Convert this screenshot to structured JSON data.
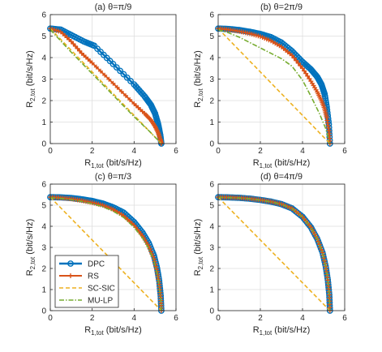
{
  "colors": {
    "DPC": "#0072BD",
    "RS": "#D95319",
    "SC-SIC": "#EDB120",
    "MU-LP": "#77AC30",
    "axis": "#262626",
    "grid": "#dedede"
  },
  "legend": {
    "entries": [
      "DPC",
      "RS",
      "SC-SIC",
      "MU-LP"
    ],
    "placement": "lower-left of panel (c)"
  },
  "chart_data": [
    {
      "type": "line",
      "title": "(a) θ=π/9",
      "xlabel": "R_1,tot (bit/s/Hz)",
      "ylabel": "R_2,tot (bit/s/Hz)",
      "xlim": [
        0,
        6
      ],
      "ylim": [
        0,
        6
      ],
      "xticks": [
        0,
        2,
        4,
        6
      ],
      "yticks": [
        0,
        1,
        2,
        3,
        4,
        5,
        6
      ],
      "grid": true,
      "series": [
        {
          "name": "DPC",
          "x": [
            0,
            0.5,
            1,
            1.6,
            2.1,
            3,
            4,
            4.5,
            4.8,
            5.0,
            5.15,
            5.25,
            5.3
          ],
          "y": [
            5.35,
            5.3,
            5.05,
            4.75,
            4.55,
            3.7,
            2.75,
            2.2,
            1.8,
            1.4,
            0.9,
            0.4,
            0
          ]
        },
        {
          "name": "RS",
          "x": [
            0,
            0.5,
            1,
            1.5,
            2,
            3,
            4,
            4.5,
            4.8,
            5.0,
            5.15,
            5.25,
            5.3
          ],
          "y": [
            5.35,
            5.2,
            4.75,
            4.2,
            3.75,
            2.8,
            1.85,
            1.4,
            1.1,
            0.8,
            0.5,
            0.2,
            0
          ]
        },
        {
          "name": "SC-SIC",
          "x": [
            0,
            5.3
          ],
          "y": [
            5.35,
            0
          ]
        },
        {
          "name": "MU-LP",
          "x": [
            0,
            1,
            2,
            3,
            4,
            4.7,
            5.0,
            5.2,
            5.3
          ],
          "y": [
            5.3,
            4.25,
            3.25,
            2.25,
            1.25,
            0.6,
            0.3,
            0.1,
            0
          ]
        }
      ]
    },
    {
      "type": "line",
      "title": "(b) θ=2π/9",
      "xlabel": "R_1,tot (bit/s/Hz)",
      "ylabel": "R_2,tot (bit/s/Hz)",
      "xlim": [
        0,
        6
      ],
      "ylim": [
        0,
        6
      ],
      "xticks": [
        0,
        2,
        4,
        6
      ],
      "yticks": [
        0,
        1,
        2,
        3,
        4,
        5,
        6
      ],
      "grid": true,
      "series": [
        {
          "name": "DPC",
          "x": [
            0,
            0.5,
            1,
            1.5,
            2,
            2.5,
            3,
            3.5,
            4,
            4.4,
            4.7,
            4.9,
            5.05,
            5.15,
            5.25,
            5.3
          ],
          "y": [
            5.35,
            5.33,
            5.28,
            5.2,
            5.1,
            4.95,
            4.7,
            4.3,
            3.8,
            3.45,
            3.1,
            2.75,
            2.3,
            1.7,
            0.9,
            0
          ]
        },
        {
          "name": "RS",
          "x": [
            0,
            0.5,
            1,
            1.5,
            2,
            2.5,
            3,
            3.5,
            4,
            4.4,
            4.7,
            4.9,
            5.05,
            5.15,
            5.25,
            5.3
          ],
          "y": [
            5.35,
            5.3,
            5.22,
            5.12,
            4.98,
            4.78,
            4.5,
            4.1,
            3.5,
            2.9,
            2.4,
            2.0,
            1.6,
            1.2,
            0.6,
            0
          ]
        },
        {
          "name": "SC-SIC",
          "x": [
            0,
            5.3
          ],
          "y": [
            5.35,
            0
          ]
        },
        {
          "name": "MU-LP",
          "x": [
            0,
            0.5,
            1,
            1.5,
            2,
            2.5,
            3,
            3.5,
            4,
            4.4,
            4.8,
            5.1,
            5.3
          ],
          "y": [
            5.3,
            5.15,
            4.95,
            4.7,
            4.45,
            4.2,
            3.95,
            3.6,
            2.95,
            2.2,
            1.4,
            0.7,
            0
          ]
        }
      ]
    },
    {
      "type": "line",
      "title": "(c) θ=π/3",
      "xlabel": "R_1,tot (bit/s/Hz)",
      "ylabel": "R_2,tot (bit/s/Hz)",
      "xlim": [
        0,
        6
      ],
      "ylim": [
        0,
        6
      ],
      "xticks": [
        0,
        2,
        4,
        6
      ],
      "yticks": [
        0,
        1,
        2,
        3,
        4,
        5,
        6
      ],
      "grid": true,
      "series": [
        {
          "name": "DPC",
          "x": [
            0,
            0.5,
            1,
            1.5,
            2,
            2.5,
            3,
            3.5,
            4,
            4.4,
            4.7,
            4.95,
            5.1,
            5.2,
            5.27,
            5.3
          ],
          "y": [
            5.38,
            5.37,
            5.34,
            5.28,
            5.2,
            5.08,
            4.9,
            4.65,
            4.2,
            3.7,
            3.2,
            2.6,
            2.0,
            1.4,
            0.7,
            0
          ]
        },
        {
          "name": "RS",
          "x": [
            0,
            0.5,
            1,
            1.5,
            2,
            2.5,
            3,
            3.5,
            4,
            4.4,
            4.7,
            4.95,
            5.1,
            5.2,
            5.27,
            5.3
          ],
          "y": [
            5.38,
            5.35,
            5.3,
            5.22,
            5.12,
            5.0,
            4.8,
            4.5,
            4.05,
            3.55,
            3.05,
            2.45,
            1.85,
            1.25,
            0.6,
            0
          ]
        },
        {
          "name": "SC-SIC",
          "x": [
            0,
            5.3
          ],
          "y": [
            5.38,
            0
          ]
        },
        {
          "name": "MU-LP",
          "x": [
            0,
            0.5,
            1,
            1.5,
            2,
            2.5,
            3,
            3.5,
            4,
            4.4,
            4.7,
            4.95,
            5.1,
            5.2,
            5.27,
            5.3
          ],
          "y": [
            5.35,
            5.32,
            5.26,
            5.18,
            5.07,
            4.93,
            4.72,
            4.42,
            3.95,
            3.45,
            2.95,
            2.35,
            1.75,
            1.15,
            0.55,
            0
          ]
        }
      ]
    },
    {
      "type": "line",
      "title": "(d) θ=4π/9",
      "xlabel": "R_1,tot (bit/s/Hz)",
      "ylabel": "R_2,tot (bit/s/Hz)",
      "xlim": [
        0,
        6
      ],
      "ylim": [
        0,
        6
      ],
      "xticks": [
        0,
        2,
        4,
        6
      ],
      "yticks": [
        0,
        1,
        2,
        3,
        4,
        5,
        6
      ],
      "grid": true,
      "series": [
        {
          "name": "DPC",
          "x": [
            0,
            0.5,
            1,
            1.5,
            2,
            2.5,
            3,
            3.5,
            4,
            4.4,
            4.7,
            4.95,
            5.1,
            5.2,
            5.27,
            5.3
          ],
          "y": [
            5.38,
            5.37,
            5.35,
            5.31,
            5.25,
            5.17,
            5.05,
            4.85,
            4.45,
            3.95,
            3.4,
            2.75,
            2.1,
            1.45,
            0.75,
            0
          ]
        },
        {
          "name": "RS",
          "x": [
            0,
            0.5,
            1,
            1.5,
            2,
            2.5,
            3,
            3.5,
            4,
            4.4,
            4.7,
            4.95,
            5.1,
            5.2,
            5.27,
            5.3
          ],
          "y": [
            5.38,
            5.37,
            5.35,
            5.31,
            5.25,
            5.17,
            5.05,
            4.85,
            4.45,
            3.95,
            3.4,
            2.75,
            2.1,
            1.45,
            0.75,
            0
          ]
        },
        {
          "name": "SC-SIC",
          "x": [
            0,
            5.3
          ],
          "y": [
            5.38,
            0
          ]
        },
        {
          "name": "MU-LP",
          "x": [
            0,
            0.5,
            1,
            1.5,
            2,
            2.5,
            3,
            3.5,
            4,
            4.4,
            4.7,
            4.95,
            5.1,
            5.2,
            5.27,
            5.3
          ],
          "y": [
            5.37,
            5.36,
            5.34,
            5.3,
            5.24,
            5.16,
            5.04,
            4.84,
            4.44,
            3.94,
            3.39,
            2.74,
            2.09,
            1.44,
            0.74,
            0
          ]
        }
      ]
    }
  ]
}
